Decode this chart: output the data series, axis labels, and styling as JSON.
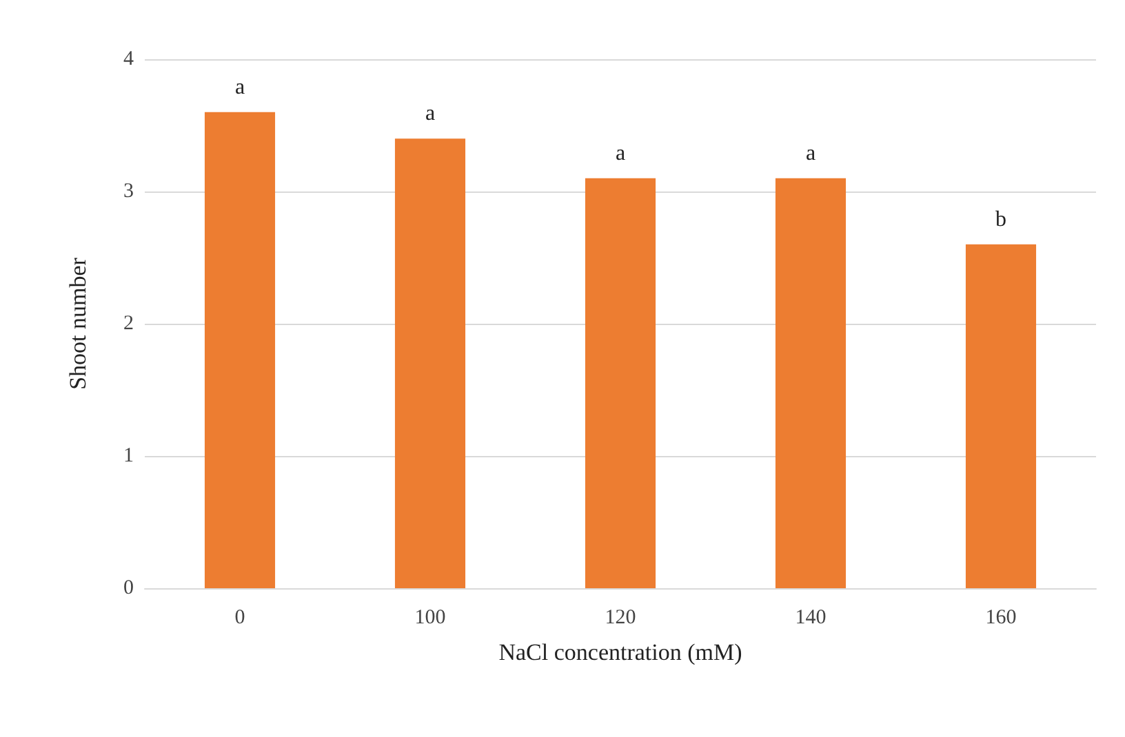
{
  "chart_data": {
    "type": "bar",
    "xlabel": "NaCl concentration (mM)",
    "ylabel": "Shoot number",
    "categories": [
      "0",
      "100",
      "120",
      "140",
      "160"
    ],
    "values": [
      3.6,
      3.4,
      3.1,
      3.1,
      2.6
    ],
    "color": "#ed7d31",
    "ylim": [
      0,
      4
    ],
    "yticks": [
      0,
      1,
      2,
      3,
      4
    ],
    "grid": "y",
    "annotations": [
      {
        "text": "a",
        "x": "0",
        "y": 3.6
      },
      {
        "text": "a",
        "x": "100",
        "y": 3.4
      },
      {
        "text": "a",
        "x": "120",
        "y": 3.1
      },
      {
        "text": "a",
        "x": "140",
        "y": 3.1
      },
      {
        "text": "b",
        "x": "160",
        "y": 2.6
      }
    ]
  }
}
